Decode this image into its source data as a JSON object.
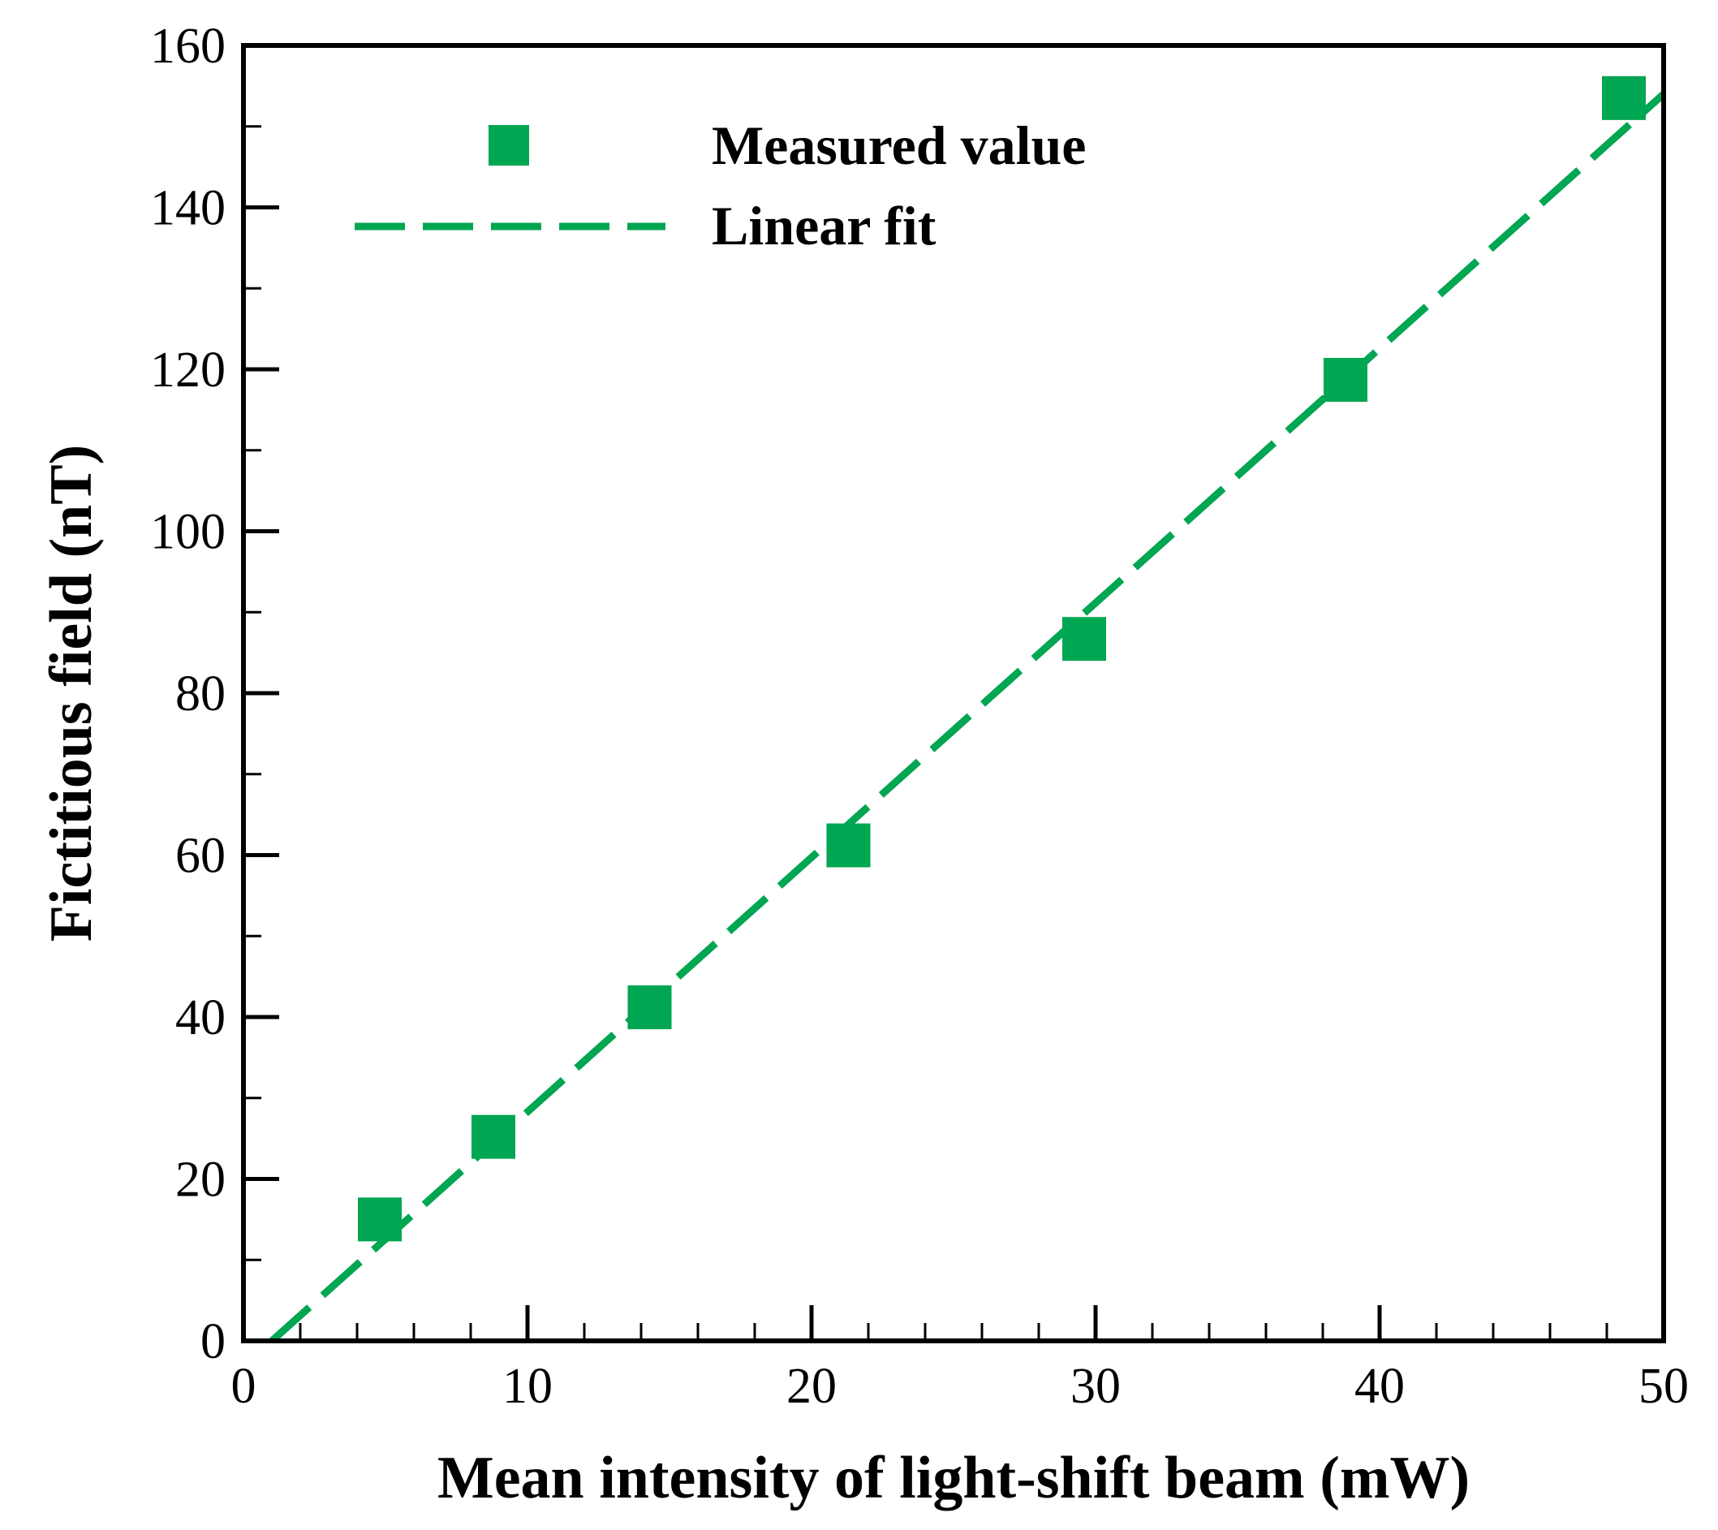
{
  "chart_data": {
    "type": "scatter",
    "title": "",
    "xlabel": "Mean intensity of light-shift beam (mW)",
    "ylabel": "Fictitious field (nT)",
    "xlim": [
      0,
      50
    ],
    "ylim": [
      0,
      160
    ],
    "xticks": [
      0,
      10,
      20,
      30,
      40,
      50
    ],
    "xtick_labels": [
      "0",
      "10",
      "20",
      "30",
      "40",
      "50"
    ],
    "yticks": [
      0,
      20,
      40,
      60,
      80,
      100,
      120,
      140,
      160
    ],
    "ytick_labels": [
      "0",
      "20",
      "40",
      "60",
      "80",
      "100",
      "120",
      "140",
      "160"
    ],
    "x_minor_step": 2,
    "y_minor_step": 10,
    "grid": false,
    "legend_position": "top-left",
    "series": [
      {
        "name": "Measured value",
        "kind": "markers",
        "marker": "square",
        "color": "#00a651",
        "x": [
          4.8,
          8.8,
          14.3,
          21.3,
          29.6,
          38.8,
          48.6
        ],
        "y": [
          15.0,
          25.2,
          41.2,
          61.2,
          86.7,
          118.7,
          153.5
        ]
      },
      {
        "name": "Linear fit",
        "kind": "line",
        "style": "dashed",
        "color": "#00a651",
        "x": [
          1.0,
          50.0
        ],
        "y": [
          0.0,
          154.0
        ]
      }
    ]
  }
}
